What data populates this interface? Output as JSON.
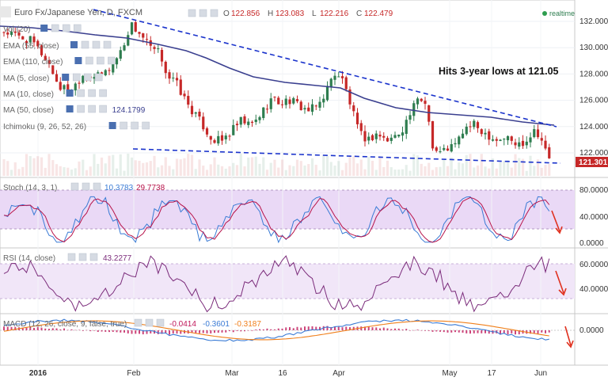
{
  "chart_data": {
    "type": "candlestick",
    "title": "Euro Fx/Japanese Yen, D, FXCM",
    "ohlc_labels": [
      "O",
      "H",
      "L",
      "C"
    ],
    "ohlc": [
      "122.856",
      "123.083",
      "122.216",
      "122.479"
    ],
    "status": "realtime",
    "current_price": "121.301",
    "annotation": "Hits 3-year lows at 121.05",
    "y_ticks": [
      "132.000",
      "130.000",
      "128.000",
      "126.000",
      "124.000",
      "122.000"
    ],
    "ylim": [
      120.6,
      133.2
    ],
    "x_ticks": [
      "2016",
      "Feb",
      "Mar",
      "16",
      "Apr",
      "May",
      "17",
      "Jun"
    ],
    "overlays": [
      {
        "label": "Vol (20)"
      },
      {
        "label": "EMA (55, close)"
      },
      {
        "label": "EMA (110, close)"
      },
      {
        "label": "MA (5, close)"
      },
      {
        "label": "MA (10, close)"
      },
      {
        "label": "MA (50, close)",
        "value": "124.1799"
      },
      {
        "label": "Ichimoku (9, 26, 52, 26)"
      }
    ],
    "stoch": {
      "label": "Stoch (14, 3, 1)",
      "values": [
        "10.3783",
        "29.7738"
      ],
      "y_ticks": [
        "80.0000",
        "40.0000",
        "0.0000"
      ]
    },
    "rsi": {
      "label": "RSI (14, close)",
      "value": "43.2277",
      "y_ticks": [
        "60.0000",
        "40.0000"
      ]
    },
    "macd": {
      "label": "MACD (12, 26, close, 9, false, true)",
      "values": [
        "-0.0414",
        "-0.3601",
        "-0.3187"
      ],
      "y_ticks": [
        "0.0000"
      ]
    },
    "colors": {
      "bull": "#2e7d4f",
      "bear": "#c62828",
      "ma50": "#3a3f8f",
      "trend": "#1a33cc",
      "stoch_k": "#3a7bd5",
      "stoch_d": "#b7134a",
      "rsi": "#7b2c7b",
      "macd": "#3a7bd5",
      "signal": "#f07f1a",
      "hist": "#c0185a",
      "arrow": "#e0301e",
      "price_tag": "#c62828",
      "band": "#e8d5f5",
      "ctl_icon": "#4a6fb0"
    }
  }
}
